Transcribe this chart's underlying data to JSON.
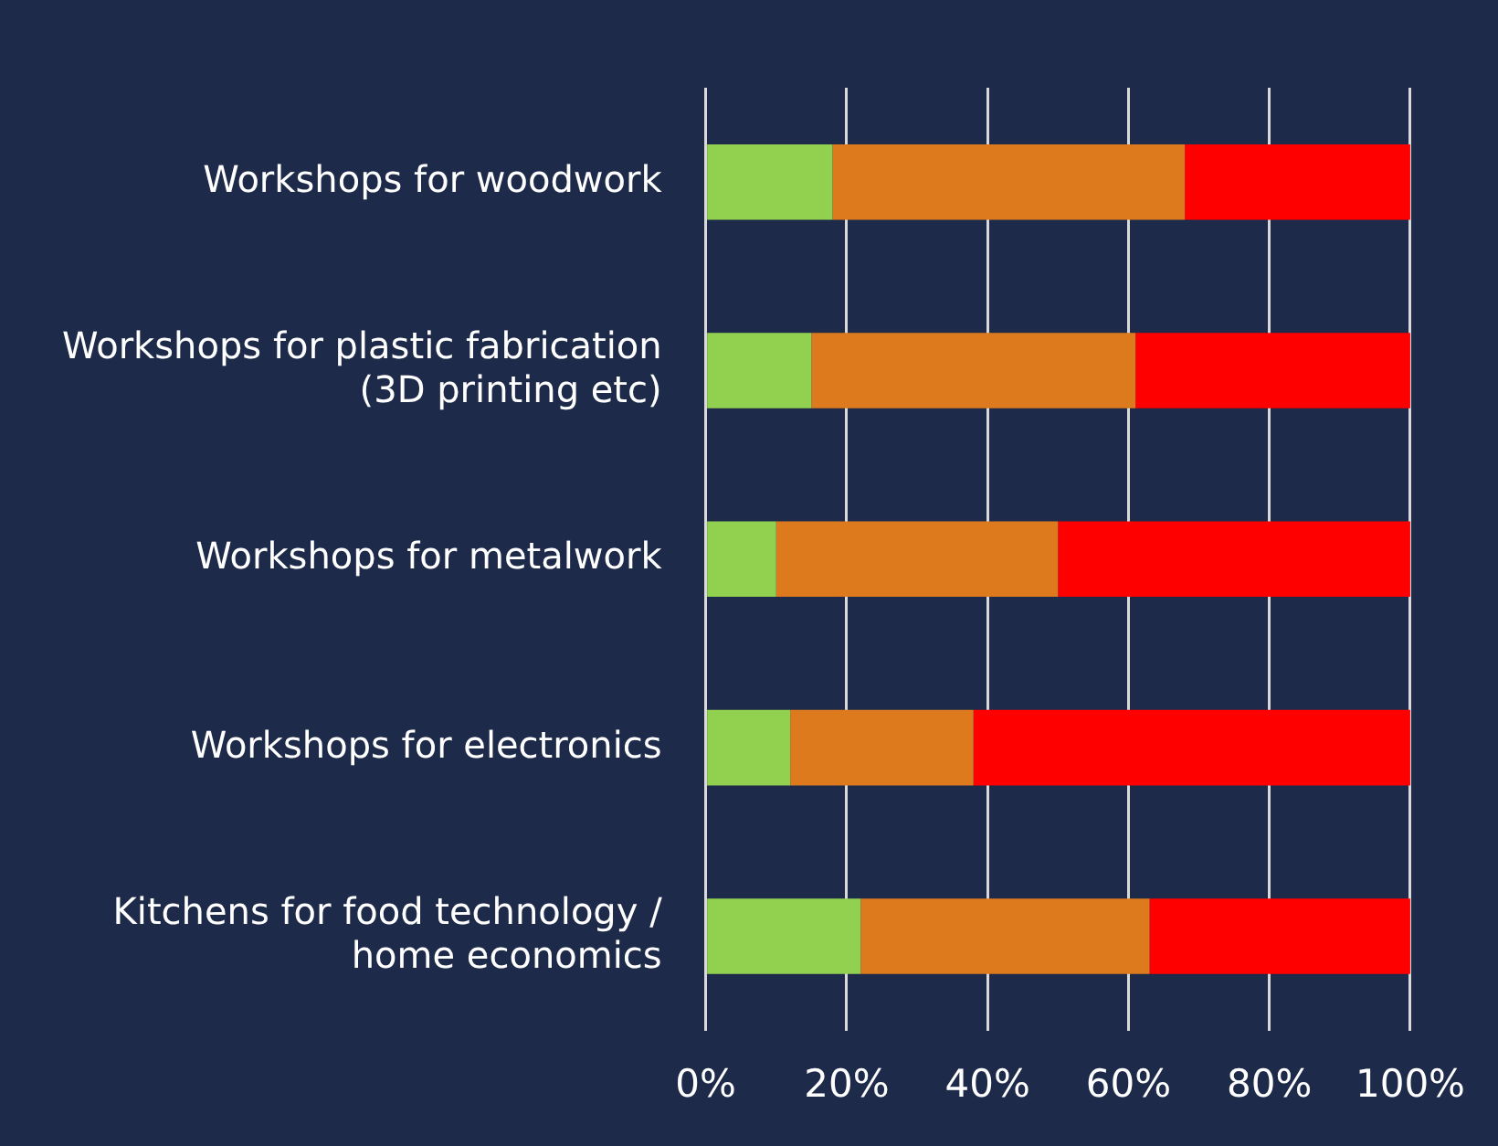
{
  "chart_data": {
    "type": "bar",
    "orientation": "horizontal",
    "stacked": true,
    "categories": [
      "Workshops for woodwork",
      "Workshops for plastic fabrication (3D printing etc)",
      "Workshops for metalwork",
      "Workshops for electronics",
      "Kitchens for food technology / home economics"
    ],
    "series": [
      {
        "color": "#92d050",
        "values": [
          18,
          15,
          10,
          12,
          22
        ]
      },
      {
        "color": "#dd7a1e",
        "values": [
          50,
          46,
          40,
          26,
          41
        ]
      },
      {
        "color": "#ff0000",
        "values": [
          32,
          39,
          50,
          62,
          37
        ]
      }
    ],
    "xlim": [
      0,
      100
    ],
    "xticks": [
      {
        "value": 0,
        "label": "0%"
      },
      {
        "value": 20,
        "label": "20%"
      },
      {
        "value": 40,
        "label": "40%"
      },
      {
        "value": 60,
        "label": "60%"
      },
      {
        "value": 80,
        "label": "80%"
      },
      {
        "value": 100,
        "label": "100%"
      }
    ],
    "grid": "x",
    "legend": false
  }
}
